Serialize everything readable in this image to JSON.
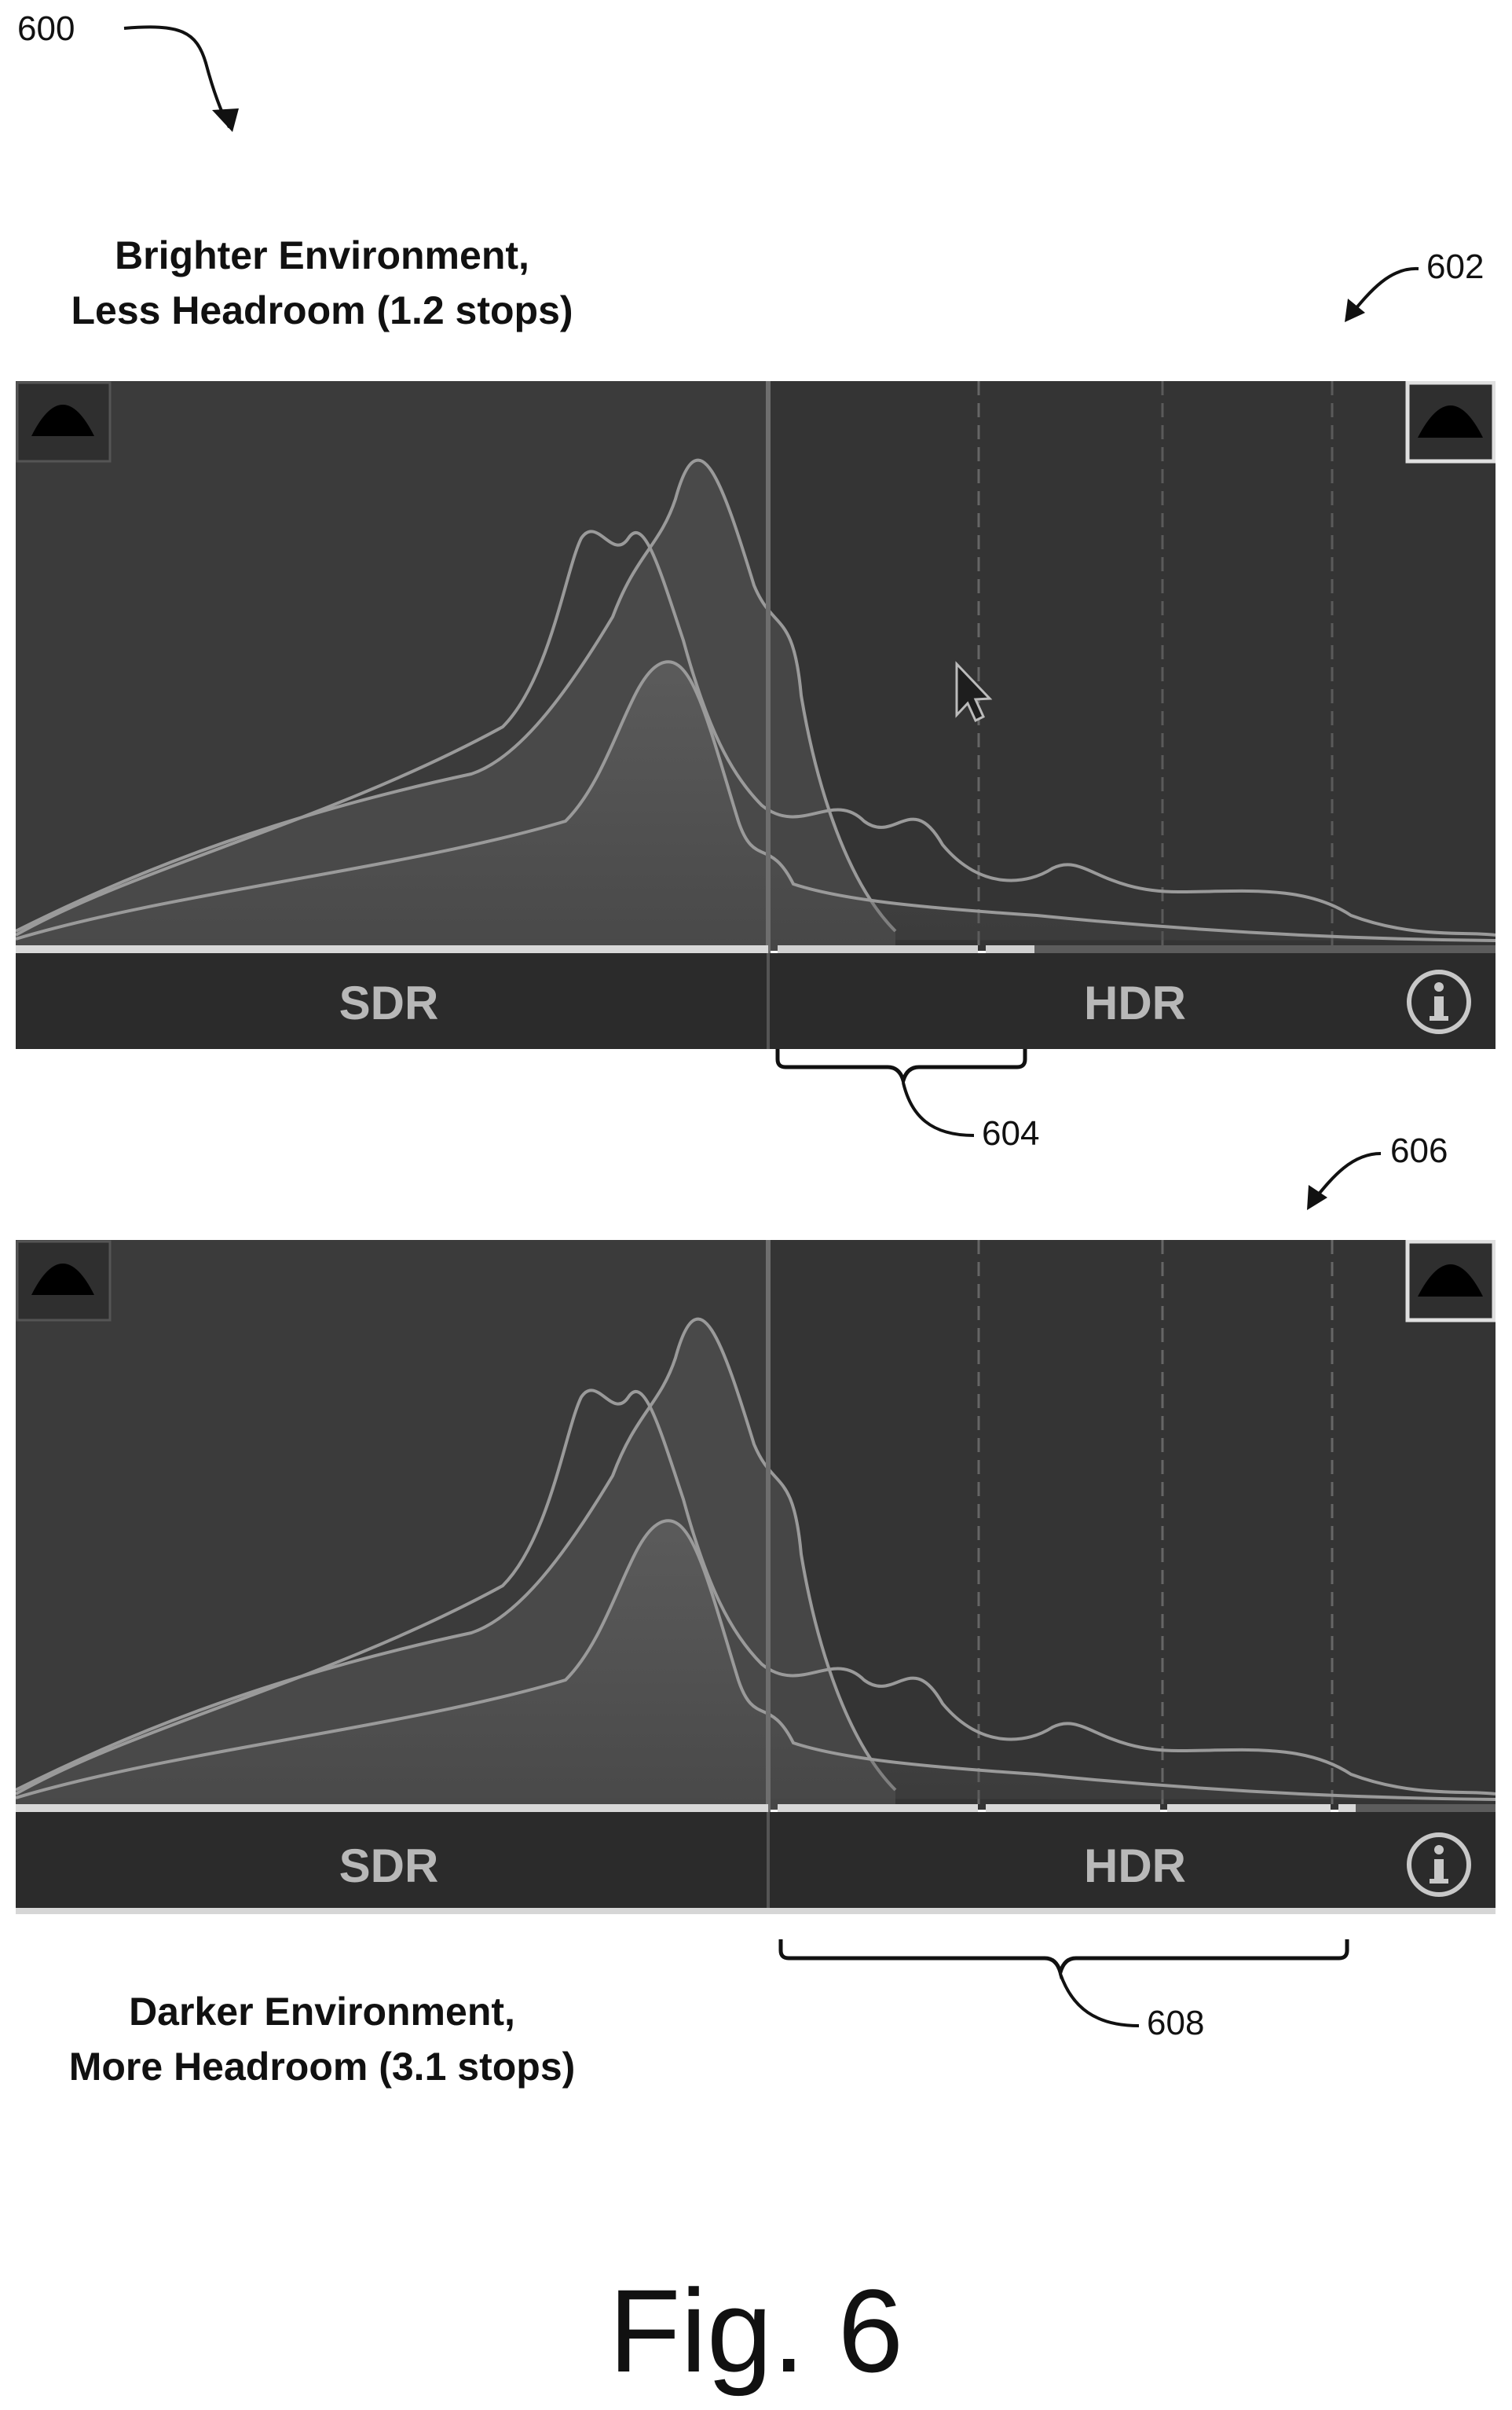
{
  "figure": {
    "ref_main": "600",
    "title": "Fig. 6"
  },
  "top_panel": {
    "ref": "602",
    "caption_line1": "Brighter Environment,",
    "caption_line2": "Less Headroom (1.2 stops)",
    "sdr_label": "SDR",
    "hdr_label": "HDR",
    "info_icon": "info-icon",
    "bracket_ref": "604",
    "headroom_stops": 1.2,
    "cursor_icon": "mouse-pointer-icon"
  },
  "bottom_panel": {
    "ref": "606",
    "caption_line1": "Darker Environment,",
    "caption_line2": "More Headroom (3.1 stops)",
    "sdr_label": "SDR",
    "hdr_label": "HDR",
    "info_icon": "info-icon",
    "bracket_ref": "608",
    "headroom_stops": 3.1
  },
  "colors": {
    "panel_bg": "#3a3a3a",
    "hdr_bg": "#343434",
    "curve": "#9a9a9a",
    "label_bar": "#2b2b2b",
    "label_text": "#b8b8b8"
  }
}
